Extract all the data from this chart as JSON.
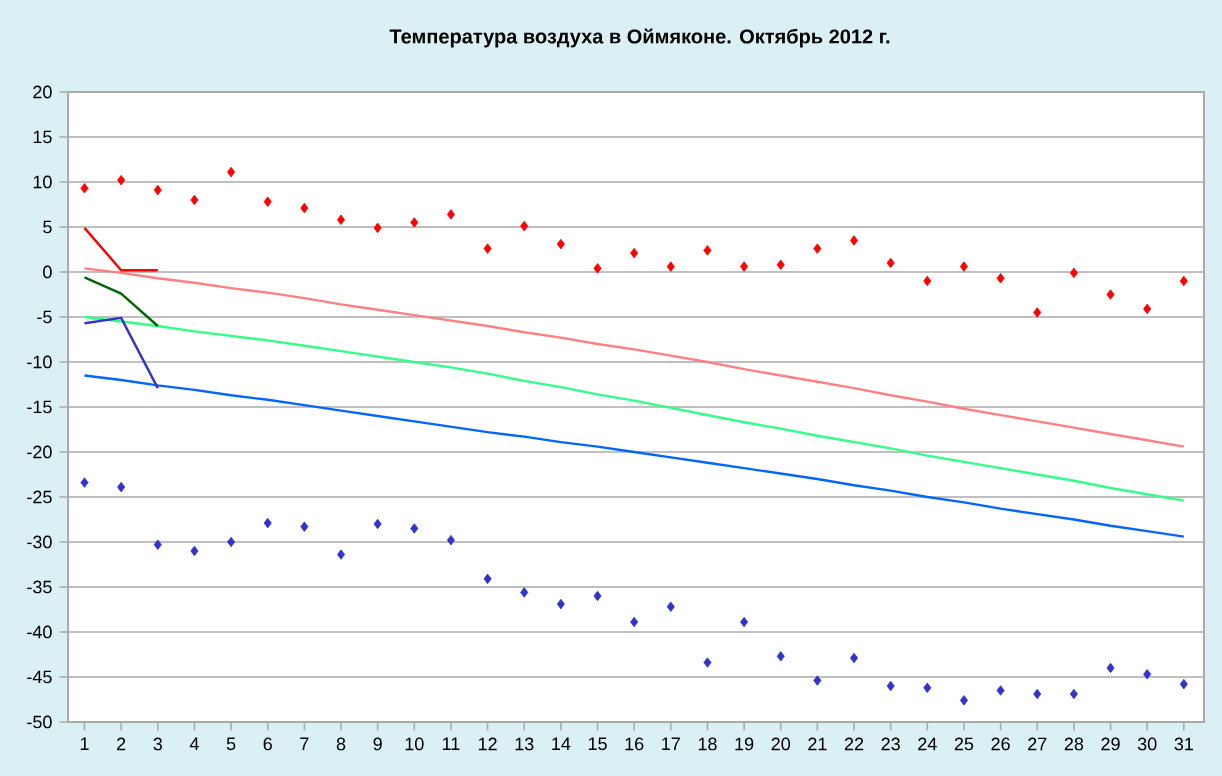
{
  "chart_data": {
    "type": "line",
    "title": "Температура воздуха в Оймяконе. Октябрь 2012 г.",
    "categories": [
      "1",
      "2",
      "3",
      "4",
      "5",
      "6",
      "7",
      "8",
      "9",
      "10",
      "11",
      "12",
      "13",
      "14",
      "15",
      "16",
      "17",
      "18",
      "19",
      "20",
      "21",
      "22",
      "23",
      "24",
      "25",
      "26",
      "27",
      "28",
      "29",
      "30",
      "31"
    ],
    "ylim": [
      -50,
      20
    ],
    "yticks": [
      -50,
      -45,
      -40,
      -35,
      -30,
      -25,
      -20,
      -15,
      -10,
      -5,
      0,
      5,
      10,
      15,
      20
    ],
    "grid": "y",
    "series": [
      {
        "type": "scatter",
        "marker": "diamond",
        "color": "#ff0000",
        "values": [
          9.3,
          10.2,
          9.1,
          8.0,
          11.1,
          7.8,
          7.1,
          5.8,
          4.9,
          5.5,
          6.4,
          2.6,
          5.1,
          3.1,
          0.4,
          2.1,
          0.6,
          2.4,
          0.6,
          0.8,
          2.6,
          3.5,
          1.0,
          -1.0,
          0.6,
          -0.7,
          -4.5,
          -0.1,
          -2.5,
          -4.1,
          -1.0
        ]
      },
      {
        "type": "scatter",
        "marker": "diamond",
        "color": "#3333cc",
        "values": [
          -23.4,
          -23.9,
          -30.3,
          -31.0,
          -30.0,
          -27.9,
          -28.3,
          -31.4,
          -28.0,
          -28.5,
          -29.8,
          -34.1,
          -35.6,
          -36.9,
          -36.0,
          -38.9,
          -37.2,
          -43.4,
          -38.9,
          -42.7,
          -45.4,
          -42.9,
          -46.0,
          -46.2,
          -47.6,
          -46.5,
          -46.9,
          -46.9,
          -44.0,
          -44.7,
          -45.8
        ]
      },
      {
        "color": "#ff8080",
        "values": [
          0.4,
          -0.1,
          -0.7,
          -1.2,
          -1.8,
          -2.3,
          -2.9,
          -3.6,
          -4.2,
          -4.8,
          -5.4,
          -6.0,
          -6.7,
          -7.3,
          -8.0,
          -8.6,
          -9.3,
          -10.0,
          -10.8,
          -11.5,
          -12.2,
          -12.9,
          -13.7,
          -14.4,
          -15.2,
          -15.9,
          -16.6,
          -17.3,
          -18.0,
          -18.7,
          -19.4
        ]
      },
      {
        "color": "#33ff88",
        "values": [
          -5.0,
          -5.5,
          -6.0,
          -6.6,
          -7.1,
          -7.6,
          -8.2,
          -8.8,
          -9.4,
          -10.0,
          -10.6,
          -11.3,
          -12.1,
          -12.8,
          -13.6,
          -14.3,
          -15.1,
          -15.9,
          -16.7,
          -17.4,
          -18.2,
          -18.9,
          -19.6,
          -20.4,
          -21.1,
          -21.8,
          -22.5,
          -23.2,
          -24.0,
          -24.7,
          -25.4
        ]
      },
      {
        "color": "#0066ff",
        "values": [
          -11.5,
          -12.0,
          -12.6,
          -13.1,
          -13.7,
          -14.2,
          -14.8,
          -15.4,
          -16.0,
          -16.6,
          -17.2,
          -17.8,
          -18.3,
          -18.9,
          -19.4,
          -20.0,
          -20.6,
          -21.2,
          -21.8,
          -22.4,
          -23.0,
          -23.7,
          -24.3,
          -25.0,
          -25.6,
          -26.3,
          -26.9,
          -27.5,
          -28.2,
          -28.8,
          -29.4
        ]
      },
      {
        "color": "#ff0000",
        "values": [
          4.9,
          0.2,
          0.2,
          null,
          null,
          null,
          null,
          null,
          null,
          null,
          null,
          null,
          null,
          null,
          null,
          null,
          null,
          null,
          null,
          null,
          null,
          null,
          null,
          null,
          null,
          null,
          null,
          null,
          null,
          null,
          null
        ]
      },
      {
        "color": "#006600",
        "values": [
          -0.6,
          -2.4,
          -6.0,
          null,
          null,
          null,
          null,
          null,
          null,
          null,
          null,
          null,
          null,
          null,
          null,
          null,
          null,
          null,
          null,
          null,
          null,
          null,
          null,
          null,
          null,
          null,
          null,
          null,
          null,
          null,
          null
        ]
      },
      {
        "color": "#3333cc",
        "values": [
          -5.7,
          -5.1,
          -12.9,
          null,
          null,
          null,
          null,
          null,
          null,
          null,
          null,
          null,
          null,
          null,
          null,
          null,
          null,
          null,
          null,
          null,
          null,
          null,
          null,
          null,
          null,
          null,
          null,
          null,
          null,
          null,
          null
        ]
      }
    ]
  }
}
